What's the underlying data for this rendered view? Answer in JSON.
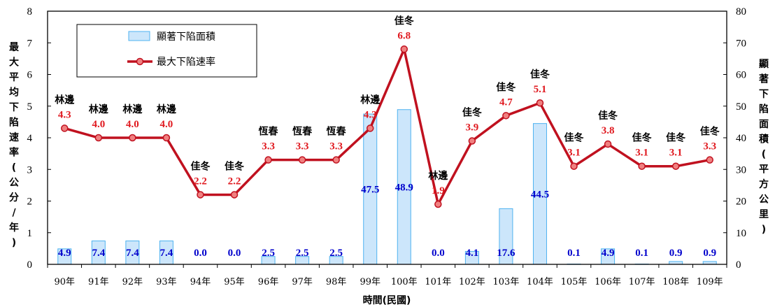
{
  "chart_data": {
    "type": "bar+line",
    "categories": [
      "90年",
      "91年",
      "92年",
      "93年",
      "94年",
      "95年",
      "96年",
      "97年",
      "98年",
      "99年",
      "100年",
      "101年",
      "102年",
      "103年",
      "104年",
      "105年",
      "106年",
      "107年",
      "108年",
      "109年"
    ],
    "xlabel": "時間(民國)",
    "ylabel_left": "最大平均下陷速率(公分/年)",
    "ylabel_right": "顯著下陷面積(平方公里)",
    "ylim_left": [
      0,
      8
    ],
    "ylim_right": [
      0,
      80
    ],
    "yticks_left": [
      "0",
      "1",
      "2",
      "3",
      "4",
      "5",
      "6",
      "7",
      "8"
    ],
    "yticks_right": [
      "0",
      "10",
      "20",
      "30",
      "40",
      "50",
      "60",
      "70",
      "80"
    ],
    "grid": false,
    "legend_position": "top-left",
    "series": [
      {
        "name": "顯著下陷面積",
        "type": "bar",
        "axis": "right",
        "color": "#cce6fb",
        "border_color": "#4fb3f0",
        "values": [
          4.9,
          7.4,
          7.4,
          7.4,
          0.0,
          0.0,
          2.5,
          2.5,
          2.5,
          47.5,
          48.9,
          0.0,
          4.1,
          17.6,
          44.5,
          0.1,
          4.9,
          0.1,
          0.9,
          0.9
        ],
        "labels": [
          "4.9",
          "7.4",
          "7.4",
          "7.4",
          "0.0",
          "0.0",
          "2.5",
          "2.5",
          "2.5",
          "47.5",
          "48.9",
          "0.0",
          "4.1",
          "17.6",
          "44.5",
          "0.1",
          "4.9",
          "0.1",
          "0.9",
          "0.9"
        ],
        "label_color": "#0000cc"
      },
      {
        "name": "最大下陷速率",
        "type": "line",
        "axis": "left",
        "color": "#c0111f",
        "marker_color": "#f08080",
        "values": [
          4.3,
          4.0,
          4.0,
          4.0,
          2.2,
          2.2,
          3.3,
          3.3,
          3.3,
          4.3,
          6.8,
          1.9,
          3.9,
          4.7,
          5.1,
          3.1,
          3.8,
          3.1,
          3.1,
          3.3
        ],
        "labels": [
          "4.3",
          "4.0",
          "4.0",
          "4.0",
          "2.2",
          "2.2",
          "3.3",
          "3.3",
          "3.3",
          "4.3",
          "6.8",
          "1.9",
          "3.9",
          "4.7",
          "5.1",
          "3.1",
          "3.8",
          "3.1",
          "3.1",
          "3.3"
        ],
        "label_color": "#e0191f"
      }
    ],
    "annotations": [
      "林邊",
      "林邊",
      "林邊",
      "林邊",
      "佳冬",
      "佳冬",
      "恆春",
      "恆春",
      "恆春",
      "林邊",
      "佳冬",
      "林邊",
      "佳冬",
      "佳冬",
      "佳冬",
      "佳冬",
      "佳冬",
      "佳冬",
      "佳冬",
      "佳冬"
    ]
  }
}
